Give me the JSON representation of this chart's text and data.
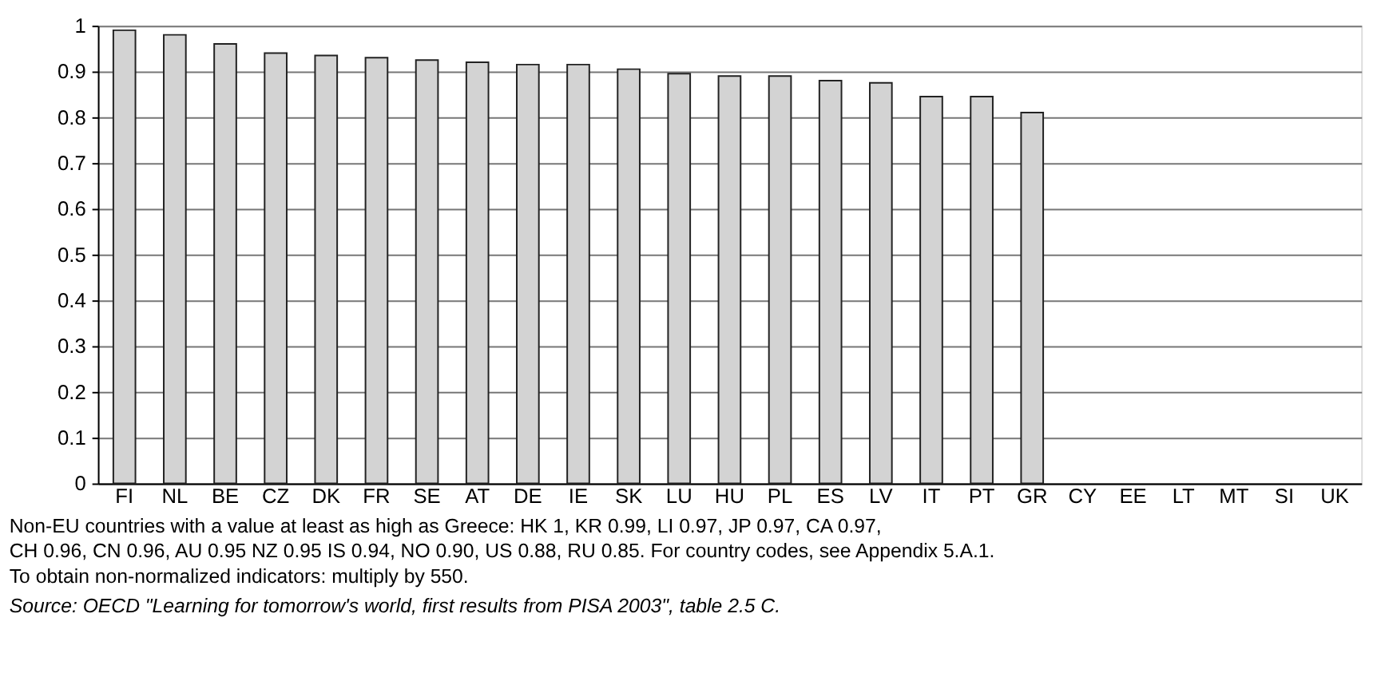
{
  "chart_data": {
    "type": "bar",
    "categories": [
      "FI",
      "NL",
      "BE",
      "CZ",
      "DK",
      "FR",
      "SE",
      "AT",
      "DE",
      "IE",
      "SK",
      "LU",
      "HU",
      "PL",
      "ES",
      "LV",
      "IT",
      "PT",
      "GR",
      "CY",
      "EE",
      "LT",
      "MT",
      "SI",
      "UK"
    ],
    "values": [
      0.99,
      0.98,
      0.96,
      0.94,
      0.935,
      0.93,
      0.925,
      0.92,
      0.915,
      0.915,
      0.905,
      0.895,
      0.89,
      0.89,
      0.88,
      0.875,
      0.845,
      0.845,
      0.81,
      null,
      null,
      null,
      null,
      null,
      null
    ],
    "color": "#d3d3d3",
    "ylim": [
      0,
      1
    ],
    "yticks": [
      0,
      0.1,
      0.2,
      0.3,
      0.4,
      0.5,
      0.6,
      0.7,
      0.8,
      0.9,
      1
    ],
    "grid": "y",
    "annotations": [
      "Non-EU countries with a value at least as high as Greece: HK 1, KR 0.99, LI 0.97, JP 0.97, CA 0.97,",
      "CH 0.96, CN 0.96, AU 0.95 NZ 0.95 IS 0.94, NO 0.90, US 0.88, RU 0.85. For country codes, see Appendix 5.A.1.",
      "To obtain non-normalized indicators: multiply by 550.",
      "Source: OECD \"Learning for tomorrow's world, first results from PISA 2003\", table 2.5 C."
    ]
  }
}
